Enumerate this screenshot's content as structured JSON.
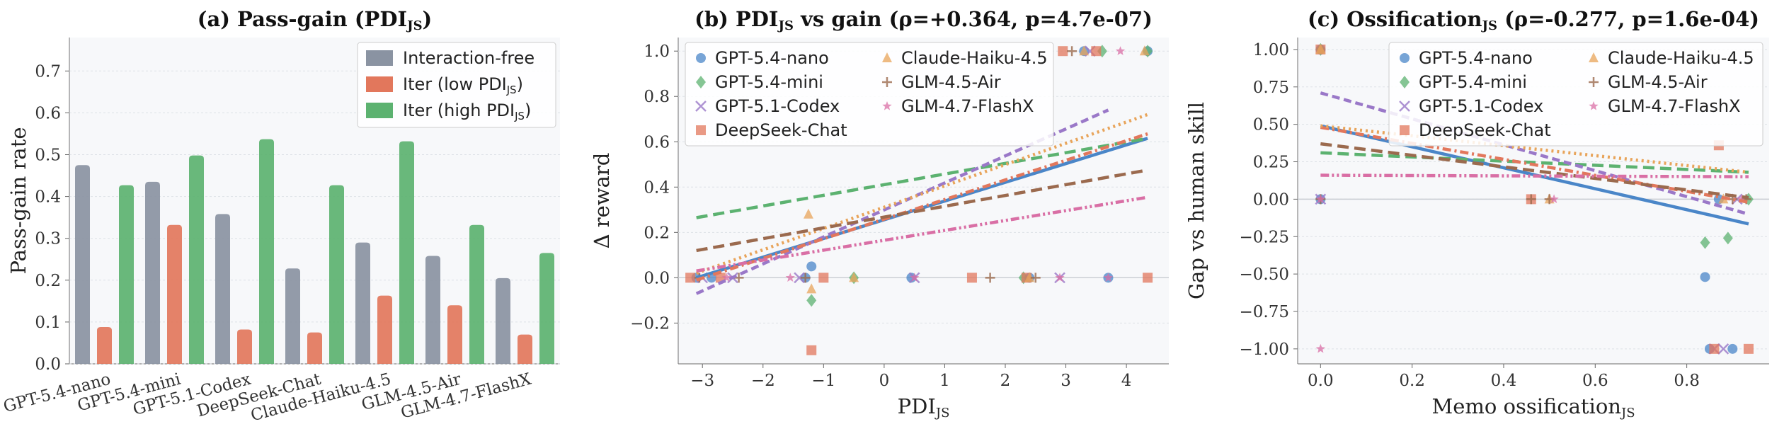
{
  "chart_data": [
    {
      "type": "bar",
      "title": "(a) Pass-gain (PDI",
      "title_sub": "JS",
      "title_suffix": ")",
      "ylabel": "Pass-gain rate",
      "ylim": [
        0,
        0.78
      ],
      "yticks": [
        0.0,
        0.1,
        0.2,
        0.3,
        0.4,
        0.5,
        0.6,
        0.7
      ],
      "categories": [
        "GPT-5.4-nano",
        "GPT-5.4-mini",
        "GPT-5.1-Codex",
        "DeepSeek-Chat",
        "Claude-Haiku-4.5",
        "GLM-4.5-Air",
        "GLM-4.7-FlashX"
      ],
      "legend_position": "top-right",
      "series": [
        {
          "name": "Interaction-free",
          "name_sub": "",
          "name_suffix": "",
          "color": "#8a93a2",
          "values": [
            0.475,
            0.435,
            0.358,
            0.228,
            0.29,
            0.258,
            0.205
          ]
        },
        {
          "name": "Iter (low PDI",
          "name_sub": "JS",
          "name_suffix": ")",
          "color": "#e2775c",
          "values": [
            0.088,
            0.332,
            0.082,
            0.075,
            0.163,
            0.14,
            0.07
          ]
        },
        {
          "name": "Iter (high PDI",
          "name_sub": "JS",
          "name_suffix": ")",
          "color": "#5cb270",
          "values": [
            0.427,
            0.498,
            0.537,
            0.427,
            0.532,
            0.332,
            0.265
          ]
        }
      ]
    },
    {
      "type": "scatter",
      "title": "(b) PDI",
      "title_sub": "JS",
      "title_suffix": " vs gain (ρ=+0.364, p=4.7e-07)",
      "xlabel": "PDI",
      "xlabel_sub": "JS",
      "ylabel": "Δ reward",
      "xlim": [
        -3.4,
        4.7
      ],
      "ylim": [
        -0.38,
        1.06
      ],
      "xticks": [
        -3,
        -2,
        -1,
        0,
        1,
        2,
        3,
        4
      ],
      "yticks": [
        -0.2,
        0.0,
        0.2,
        0.4,
        0.6,
        0.8,
        1.0
      ],
      "legend_position": "top-left",
      "series": [
        {
          "name": "GPT-5.4-nano",
          "marker": "circle",
          "color": "#4a86c8",
          "dash": "solid",
          "fit": [
            [
              -3.1,
              0.0
            ],
            [
              4.35,
              0.615
            ]
          ],
          "points": [
            [
              -3.1,
              0.0
            ],
            [
              -2.85,
              0.0
            ],
            [
              -1.2,
              0.05
            ],
            [
              -1.3,
              0.0
            ],
            [
              0.45,
              0.0
            ],
            [
              2.4,
              0.0
            ],
            [
              3.3,
              1.0
            ],
            [
              3.7,
              0.0
            ],
            [
              4.35,
              1.0
            ]
          ]
        },
        {
          "name": "GPT-5.4-mini",
          "marker": "diamond",
          "color": "#5cb270",
          "dash": "long",
          "fit": [
            [
              -3.1,
              0.265
            ],
            [
              4.35,
              0.615
            ]
          ],
          "points": [
            [
              -1.2,
              -0.1
            ],
            [
              -0.5,
              0.0
            ],
            [
              2.3,
              0.0
            ],
            [
              3.6,
              1.0
            ],
            [
              4.35,
              1.0
            ]
          ]
        },
        {
          "name": "GPT-5.1-Codex",
          "marker": "x",
          "color": "#9a78c8",
          "dash": "dash",
          "fit": [
            [
              -3.1,
              -0.07
            ],
            [
              3.7,
              0.74
            ]
          ],
          "points": [
            [
              -3.0,
              0.0
            ],
            [
              -2.5,
              0.0
            ],
            [
              -1.4,
              0.0
            ],
            [
              0.5,
              0.0
            ],
            [
              2.9,
              0.0
            ],
            [
              3.4,
              1.0
            ]
          ]
        },
        {
          "name": "DeepSeek-Chat",
          "marker": "square",
          "color": "#e2775c",
          "dash": "dashdot",
          "fit": [
            [
              -3.1,
              -0.01
            ],
            [
              4.35,
              0.635
            ]
          ],
          "points": [
            [
              -3.2,
              0.0
            ],
            [
              -2.7,
              0.0
            ],
            [
              -1.2,
              -0.32
            ],
            [
              -1.0,
              0.0
            ],
            [
              1.45,
              0.0
            ],
            [
              2.35,
              0.0
            ],
            [
              2.95,
              1.0
            ],
            [
              3.5,
              1.0
            ],
            [
              4.35,
              0.0
            ]
          ]
        },
        {
          "name": "Claude-Haiku-4.5",
          "marker": "triangle",
          "color": "#e8a45a",
          "dash": "dot",
          "fit": [
            [
              -3.1,
              0.02
            ],
            [
              4.35,
              0.72
            ]
          ],
          "points": [
            [
              -1.25,
              0.28
            ],
            [
              -1.2,
              -0.05
            ],
            [
              -0.5,
              0.0
            ],
            [
              2.4,
              0.0
            ],
            [
              3.3,
              1.0
            ],
            [
              4.3,
              1.0
            ]
          ]
        },
        {
          "name": "GLM-4.5-Air",
          "marker": "plus",
          "color": "#9b6a4e",
          "dash": "long",
          "fit": [
            [
              -3.1,
              0.12
            ],
            [
              4.35,
              0.475
            ]
          ],
          "points": [
            [
              -3.05,
              0.0
            ],
            [
              -2.4,
              0.0
            ],
            [
              -1.3,
              0.0
            ],
            [
              1.75,
              0.0
            ],
            [
              2.5,
              0.0
            ],
            [
              3.1,
              1.0
            ]
          ]
        },
        {
          "name": "GLM-4.7-FlashX",
          "marker": "star",
          "color": "#d96fa5",
          "dash": "dashdotdot",
          "fit": [
            [
              -3.1,
              0.03
            ],
            [
              4.35,
              0.355
            ]
          ],
          "points": [
            [
              -2.6,
              0.0
            ],
            [
              -1.55,
              0.0
            ],
            [
              0.5,
              0.0
            ],
            [
              2.9,
              0.0
            ],
            [
              3.7,
              0.0
            ],
            [
              3.9,
              1.0
            ]
          ]
        }
      ]
    },
    {
      "type": "scatter",
      "title": "(c) Ossification",
      "title_sub": "JS",
      "title_suffix": " (ρ=-0.277, p=1.6e-04)",
      "xlabel": "Memo ossification",
      "xlabel_sub": "JS",
      "ylabel": "Gap vs human skill",
      "xlim": [
        -0.05,
        0.98
      ],
      "ylim": [
        -1.1,
        1.08
      ],
      "xticks": [
        0.0,
        0.2,
        0.4,
        0.6,
        0.8
      ],
      "yticks": [
        -1.0,
        -0.75,
        -0.5,
        -0.25,
        0.0,
        0.25,
        0.5,
        0.75,
        1.0
      ],
      "legend_position": "top-right",
      "series": [
        {
          "name": "GPT-5.4-nano",
          "marker": "circle",
          "color": "#4a86c8",
          "dash": "solid",
          "fit": [
            [
              0.0,
              0.49
            ],
            [
              0.935,
              -0.165
            ]
          ],
          "points": [
            [
              0.0,
              1.0
            ],
            [
              0.0,
              0.0
            ],
            [
              0.84,
              -0.52
            ],
            [
              0.85,
              -1.0
            ],
            [
              0.87,
              0.0
            ],
            [
              0.9,
              -1.0
            ]
          ]
        },
        {
          "name": "GPT-5.4-mini",
          "marker": "diamond",
          "color": "#5cb270",
          "dash": "long",
          "fit": [
            [
              0.0,
              0.31
            ],
            [
              0.935,
              0.18
            ]
          ],
          "points": [
            [
              0.0,
              1.0
            ],
            [
              0.84,
              -0.29
            ],
            [
              0.89,
              -0.26
            ],
            [
              0.935,
              0.0
            ]
          ]
        },
        {
          "name": "GPT-5.1-Codex",
          "marker": "x",
          "color": "#9a78c8",
          "dash": "dash",
          "fit": [
            [
              0.0,
              0.71
            ],
            [
              0.935,
              -0.1
            ]
          ],
          "points": [
            [
              0.0,
              0.0
            ],
            [
              0.86,
              -1.0
            ],
            [
              0.88,
              -1.0
            ],
            [
              0.91,
              0.0
            ]
          ]
        },
        {
          "name": "DeepSeek-Chat",
          "marker": "square",
          "color": "#e2775c",
          "dash": "dashdot",
          "fit": [
            [
              0.0,
              0.48
            ],
            [
              0.935,
              -0.02
            ]
          ],
          "points": [
            [
              0.0,
              1.0
            ],
            [
              0.46,
              0.0
            ],
            [
              0.87,
              0.36
            ],
            [
              0.86,
              -1.0
            ],
            [
              0.935,
              -1.0
            ]
          ]
        },
        {
          "name": "Claude-Haiku-4.5",
          "marker": "triangle",
          "color": "#e8a45a",
          "dash": "dot",
          "fit": [
            [
              0.0,
              0.49
            ],
            [
              0.935,
              0.18
            ]
          ],
          "points": [
            [
              0.0,
              1.0
            ],
            [
              0.5,
              0.0
            ],
            [
              0.88,
              0.0
            ]
          ]
        },
        {
          "name": "GLM-4.5-Air",
          "marker": "plus",
          "color": "#9b6a4e",
          "dash": "long",
          "fit": [
            [
              0.0,
              0.37
            ],
            [
              0.935,
              0.01
            ]
          ],
          "points": [
            [
              0.0,
              0.0
            ],
            [
              0.46,
              0.0
            ],
            [
              0.5,
              0.0
            ],
            [
              0.9,
              0.0
            ],
            [
              0.93,
              0.0
            ]
          ]
        },
        {
          "name": "GLM-4.7-FlashX",
          "marker": "star",
          "color": "#d96fa5",
          "dash": "dashdotdot",
          "fit": [
            [
              0.0,
              0.16
            ],
            [
              0.935,
              0.15
            ]
          ],
          "points": [
            [
              0.0,
              -1.0
            ],
            [
              0.0,
              0.0
            ],
            [
              0.51,
              0.0
            ],
            [
              0.92,
              0.0
            ]
          ]
        }
      ]
    }
  ]
}
